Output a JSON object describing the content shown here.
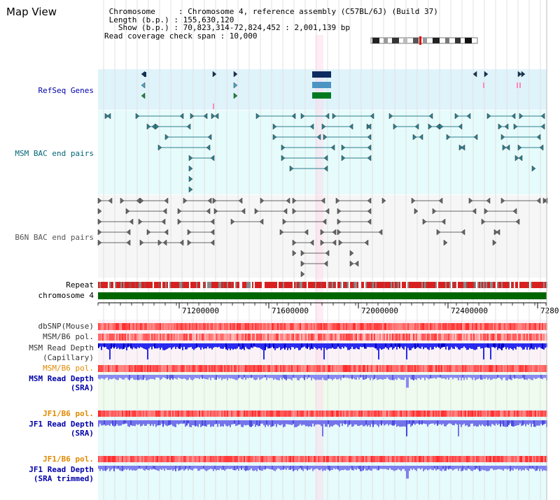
{
  "title": "Map View",
  "header": {
    "line1": " Chromosome     : Chromosome 4, reference assembly (C57BL/6J) (Build 37)",
    "line2": " Length (b.p.) : 155,630,120",
    "line3": "   Show (b.p.) : 70,823,314-72,824,452 : 2,001,139 bp",
    "line4": "Read coverage check span : 10,000"
  },
  "tracks": {
    "refseq": "RefSeq Genes",
    "msm_bac": "MSM BAC end pairs",
    "b6n_bac": "B6N BAC end pairs",
    "repeat": "Repeat",
    "chromosome": "chromosome 4",
    "dbsnp": "dbSNP(Mouse)",
    "msm_b6_pol_1": "MSM/B6 pol.",
    "msm_read_cap_1": "MSM Read Depth",
    "msm_read_cap_2": "(Capillary)",
    "msm_b6_pol_2": "MSM/B6 pol.",
    "msm_read_sra_1": "MSM Read Depth",
    "msm_read_sra_2": "(SRA)",
    "jf1_b6_pol_1": "JF1/B6 pol.",
    "jf1_read_sra_1": "JF1 Read Depth",
    "jf1_read_sra_2": "(SRA)",
    "jf1_b6_pol_2": "JF1/B6 pol.",
    "jf1_read_trim_1": "JF1 Read Depth",
    "jf1_read_trim_2": "(SRA trimmed)"
  },
  "axis": {
    "ticks": [
      "71200000",
      "71600000",
      "72000000",
      "72400000",
      "7280"
    ]
  },
  "colors": {
    "refseq_bg": "#dff3fb",
    "msm_bg": "#e6fbfb",
    "b6n_bg": "#f6f6f6",
    "chromosome": "#006600",
    "label_blue": "#0000aa",
    "label_teal": "#006677",
    "label_orange": "#e08a00"
  }
}
